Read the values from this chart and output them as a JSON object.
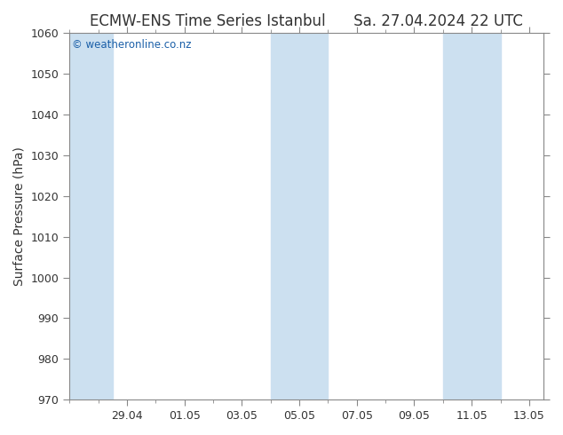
{
  "title_left": "ECMW-ENS Time Series Istanbul",
  "title_right": "Sa. 27.04.2024 22 UTC",
  "ylabel": "Surface Pressure (hPa)",
  "ylim": [
    970,
    1060
  ],
  "yticks": [
    970,
    980,
    990,
    1000,
    1010,
    1020,
    1030,
    1040,
    1050,
    1060
  ],
  "xlim": [
    0,
    16.5
  ],
  "xtick_positions": [
    2,
    4,
    6,
    8,
    10,
    12,
    14,
    16
  ],
  "xtick_labels": [
    "29.04",
    "01.05",
    "03.05",
    "05.05",
    "07.05",
    "09.05",
    "11.05",
    "13.05"
  ],
  "shaded_bands": [
    {
      "start": 0.0,
      "end": 1.5,
      "color": "#cce0f0"
    },
    {
      "start": 7.0,
      "end": 9.0,
      "color": "#cce0f0"
    },
    {
      "start": 13.0,
      "end": 15.0,
      "color": "#cce0f0"
    }
  ],
  "watermark_text": "© weatheronline.co.nz",
  "watermark_color": "#1a5fa8",
  "background_color": "#ffffff",
  "plot_bg_color": "#ffffff",
  "border_color": "#888888",
  "title_color": "#333333",
  "tick_color": "#333333",
  "title_fontsize": 12,
  "label_fontsize": 10,
  "tick_fontsize": 9,
  "watermark_fontsize": 8.5
}
